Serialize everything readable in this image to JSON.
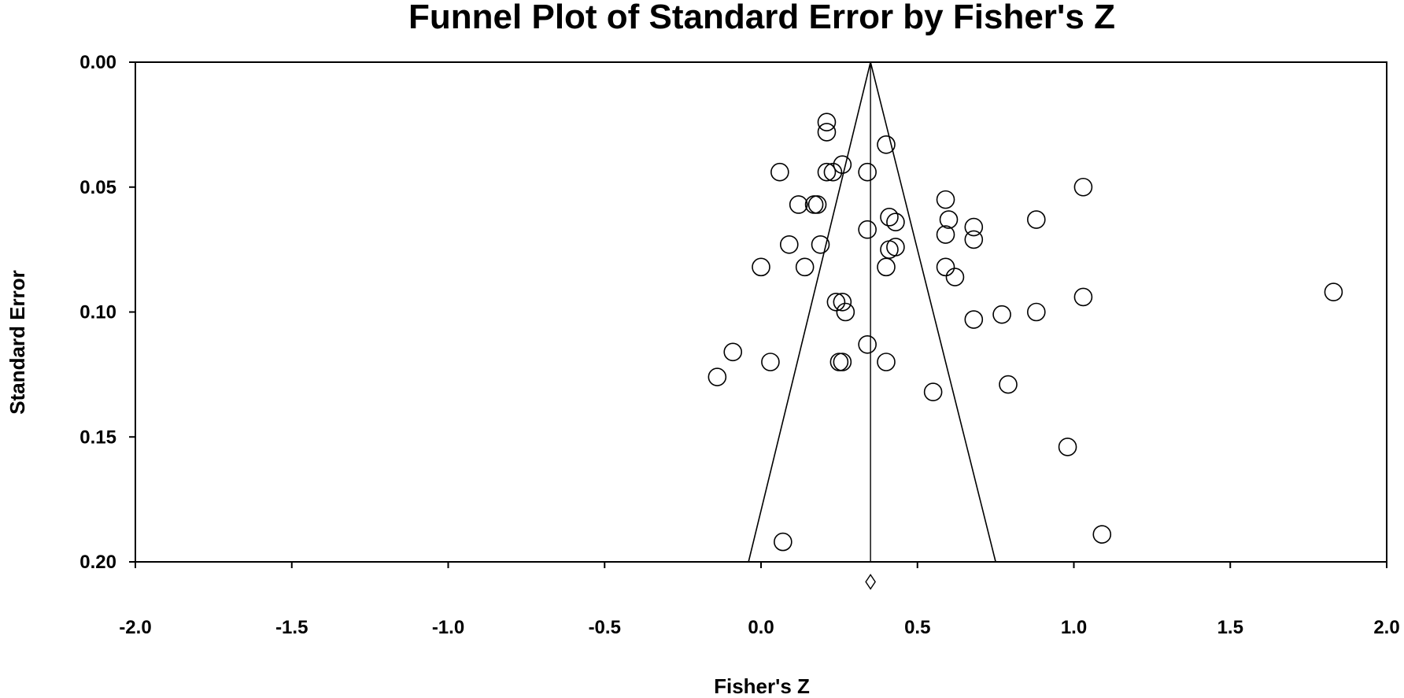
{
  "chart_data": {
    "type": "scatter",
    "title": "Funnel Plot of Standard Error by Fisher's Z",
    "xlabel": "Fisher's Z",
    "ylabel": "Standard Error",
    "xlim": [
      -2.0,
      2.0
    ],
    "ylim": [
      0.0,
      0.2
    ],
    "y_inverted": true,
    "grid": false,
    "legend": "none",
    "x_ticks": [
      -2.0,
      -1.5,
      -1.0,
      -0.5,
      0.0,
      0.5,
      1.0,
      1.5,
      2.0
    ],
    "x_tick_labels": [
      "-2.0",
      "-1.5",
      "-1.0",
      "-0.5",
      "0.0",
      "0.5",
      "1.0",
      "1.5",
      "2.0"
    ],
    "y_ticks": [
      0.0,
      0.05,
      0.1,
      0.15,
      0.2
    ],
    "y_tick_labels": [
      "0.00",
      "0.05",
      "0.10",
      "0.15",
      "0.20"
    ],
    "summary_effect": 0.35,
    "funnel": {
      "apex": {
        "x": 0.35,
        "y": 0.0
      },
      "bottom_left": {
        "x": -0.04,
        "y": 0.2
      },
      "bottom_right": {
        "x": 0.75,
        "y": 0.2
      }
    },
    "summary_diamond": {
      "x": 0.35,
      "y": 0.208
    },
    "points": [
      {
        "x": 0.21,
        "y": 0.024
      },
      {
        "x": 0.21,
        "y": 0.028
      },
      {
        "x": 0.4,
        "y": 0.033
      },
      {
        "x": 0.26,
        "y": 0.041
      },
      {
        "x": 0.06,
        "y": 0.044
      },
      {
        "x": 0.21,
        "y": 0.044
      },
      {
        "x": 0.23,
        "y": 0.044
      },
      {
        "x": 0.34,
        "y": 0.044
      },
      {
        "x": 1.03,
        "y": 0.05
      },
      {
        "x": 0.59,
        "y": 0.055
      },
      {
        "x": 0.12,
        "y": 0.057
      },
      {
        "x": 0.17,
        "y": 0.057
      },
      {
        "x": 0.18,
        "y": 0.057
      },
      {
        "x": 0.41,
        "y": 0.062
      },
      {
        "x": 0.43,
        "y": 0.064
      },
      {
        "x": 0.6,
        "y": 0.063
      },
      {
        "x": 0.88,
        "y": 0.063
      },
      {
        "x": 0.68,
        "y": 0.066
      },
      {
        "x": 0.34,
        "y": 0.067
      },
      {
        "x": 0.59,
        "y": 0.069
      },
      {
        "x": 0.68,
        "y": 0.071
      },
      {
        "x": 0.09,
        "y": 0.073
      },
      {
        "x": 0.19,
        "y": 0.073
      },
      {
        "x": 0.43,
        "y": 0.074
      },
      {
        "x": 0.41,
        "y": 0.075
      },
      {
        "x": 0.0,
        "y": 0.082
      },
      {
        "x": 0.14,
        "y": 0.082
      },
      {
        "x": 0.4,
        "y": 0.082
      },
      {
        "x": 0.59,
        "y": 0.082
      },
      {
        "x": 0.62,
        "y": 0.086
      },
      {
        "x": 1.83,
        "y": 0.092
      },
      {
        "x": 1.03,
        "y": 0.094
      },
      {
        "x": 0.24,
        "y": 0.096
      },
      {
        "x": 0.26,
        "y": 0.096
      },
      {
        "x": 0.27,
        "y": 0.1
      },
      {
        "x": 0.88,
        "y": 0.1
      },
      {
        "x": 0.77,
        "y": 0.101
      },
      {
        "x": 0.68,
        "y": 0.103
      },
      {
        "x": 0.34,
        "y": 0.113
      },
      {
        "x": -0.09,
        "y": 0.116
      },
      {
        "x": 0.03,
        "y": 0.12
      },
      {
        "x": 0.25,
        "y": 0.12
      },
      {
        "x": 0.26,
        "y": 0.12
      },
      {
        "x": 0.4,
        "y": 0.12
      },
      {
        "x": -0.14,
        "y": 0.126
      },
      {
        "x": 0.79,
        "y": 0.129
      },
      {
        "x": 0.55,
        "y": 0.132
      },
      {
        "x": 0.98,
        "y": 0.154
      },
      {
        "x": 1.09,
        "y": 0.189
      },
      {
        "x": 0.07,
        "y": 0.192
      }
    ]
  }
}
